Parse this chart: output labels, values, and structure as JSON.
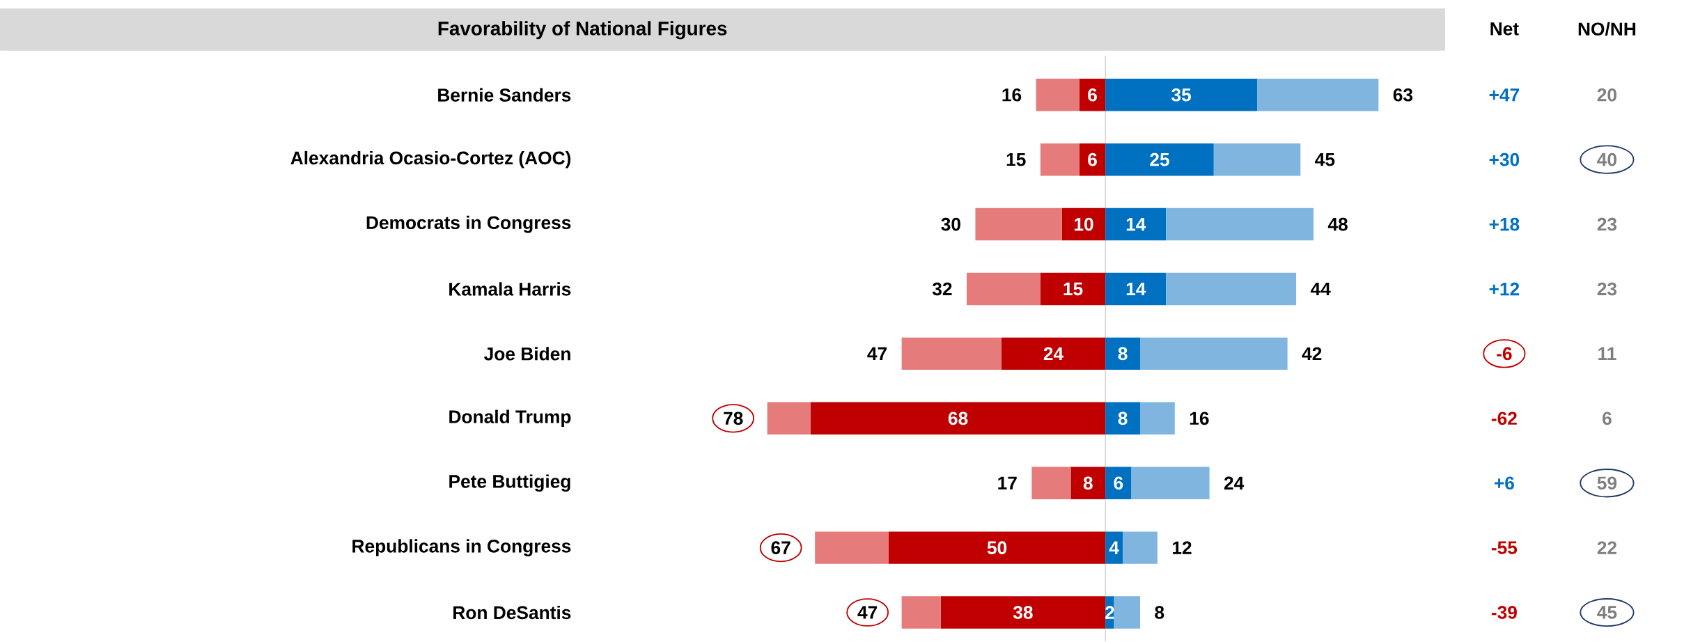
{
  "chart_data": {
    "type": "bar",
    "orientation": "horizontal",
    "stacked": true,
    "title": "Favorability of National Figures",
    "categories": [
      "Bernie Sanders",
      "Alexandria Ocasio-Cortez (AOC)",
      "Democrats in Congress",
      "Kamala Harris",
      "Joe Biden",
      "Donald Trump",
      "Pete Buttigieg",
      "Republicans in Congress",
      "Ron DeSantis"
    ],
    "series": [
      {
        "color": "#c00000",
        "values": [
          -6,
          -6,
          -10,
          -15,
          -24,
          -68,
          -8,
          -50,
          -38
        ]
      },
      {
        "color": "#e57c7b",
        "values": [
          -10,
          -9,
          -20,
          -17,
          -23,
          -10,
          -9,
          -17,
          -9
        ]
      },
      {
        "color": "#0070c0",
        "values": [
          35,
          25,
          14,
          14,
          8,
          8,
          6,
          4,
          2
        ],
        "value_labels": [
          "35",
          "25",
          "14",
          "14",
          "8",
          "8",
          "6",
          "4",
          "2"
        ]
      },
      {
        "color": "#7fb5df",
        "values": [
          28,
          20,
          34,
          30,
          34,
          8,
          18,
          8,
          6
        ]
      }
    ],
    "tick_labels": "y",
    "annotations": [
      "Net",
      "NO/NH",
      "+47",
      "+30",
      "+18",
      "+12",
      "-6",
      "-62",
      "+6",
      "-55",
      "-39",
      "20",
      "40",
      "23",
      "23",
      "11",
      "6",
      "59",
      "22",
      "45",
      "6",
      "6",
      "10",
      "15",
      "24",
      "68",
      "8",
      "50",
      "38",
      {
        "text": "16",
        "x": -16,
        "y": "Bernie Sanders"
      },
      {
        "text": "15",
        "x": -15,
        "y": "Alexandria Ocasio-Cortez (AOC)"
      },
      {
        "text": "30",
        "x": -30,
        "y": "Democrats in Congress"
      },
      {
        "text": "32",
        "x": -32,
        "y": "Kamala Harris"
      },
      {
        "text": "47",
        "x": -47,
        "y": "Joe Biden"
      },
      {
        "text": "78",
        "x": -78,
        "y": "Donald Trump"
      },
      {
        "text": "17",
        "x": -17,
        "y": "Pete Buttigieg"
      },
      {
        "text": "67",
        "x": -67,
        "y": "Republicans in Congress"
      },
      {
        "text": "47",
        "x": -47,
        "y": "Ron DeSantis"
      },
      {
        "text": "63",
        "x": 63,
        "y": "Bernie Sanders"
      },
      {
        "text": "45",
        "x": 45,
        "y": "Alexandria Ocasio-Cortez (AOC)"
      },
      {
        "text": "48",
        "x": 48,
        "y": "Democrats in Congress"
      },
      {
        "text": "44",
        "x": 44,
        "y": "Kamala Harris"
      },
      {
        "text": "42",
        "x": 42,
        "y": "Joe Biden"
      },
      {
        "text": "16",
        "x": 16,
        "y": "Donald Trump"
      },
      {
        "text": "24",
        "x": 24,
        "y": "Pete Buttigieg"
      },
      {
        "text": "12",
        "x": 12,
        "y": "Republicans in Congress"
      },
      {
        "text": "8",
        "x": 8,
        "y": "Ron DeSantis"
      }
    ]
  }
}
